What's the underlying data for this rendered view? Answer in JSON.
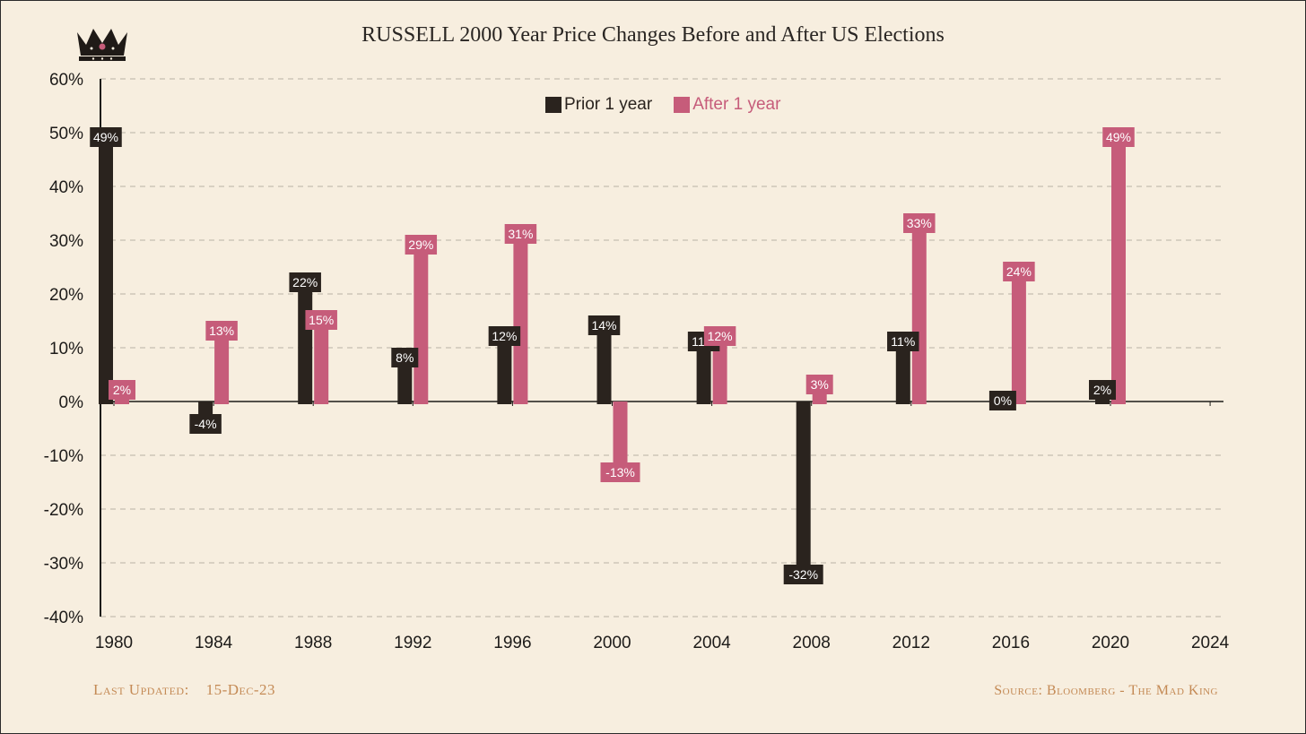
{
  "colors": {
    "background": "#f7eedf",
    "prior": "#2a231e",
    "after": "#c65c7a",
    "footer": "#c48a55",
    "grid": "#b9b2a6",
    "axis": "#1d1b19"
  },
  "logo": {
    "icon": "crown-icon"
  },
  "footer": {
    "last_updated_label": "Last Updated:",
    "last_updated_date": "15-Dec-23",
    "source": "Source: Bloomberg - The Mad King"
  },
  "chart_data": {
    "type": "bar",
    "title": "RUSSELL 2000 Year Price Changes Before and After US Elections",
    "xlabel": "",
    "ylabel": "",
    "categories": [
      "1980",
      "1984",
      "1988",
      "1992",
      "1996",
      "2000",
      "2004",
      "2008",
      "2012",
      "2016",
      "2020",
      "2024"
    ],
    "y_ticks": [
      "60%",
      "50%",
      "40%",
      "30%",
      "20%",
      "10%",
      "0%",
      "-10%",
      "-20%",
      "-30%",
      "-40%"
    ],
    "ylim": [
      -40,
      60
    ],
    "grid": true,
    "legend_position": "top-center",
    "series": [
      {
        "name": "Prior 1 year",
        "values": [
          49,
          -4,
          22,
          8,
          12,
          14,
          11,
          -32,
          11,
          0,
          2,
          null
        ],
        "labels": [
          "49%",
          "-4%",
          "22%",
          "8%",
          "12%",
          "14%",
          "11%",
          "-32%",
          "11%",
          "0%",
          "2%",
          ""
        ]
      },
      {
        "name": "After 1 year",
        "values": [
          2,
          13,
          15,
          29,
          31,
          -13,
          12,
          3,
          33,
          24,
          49,
          null
        ],
        "labels": [
          "2%",
          "13%",
          "15%",
          "29%",
          "31%",
          "-13%",
          "12%",
          "3%",
          "33%",
          "24%",
          "49%",
          ""
        ]
      }
    ]
  }
}
